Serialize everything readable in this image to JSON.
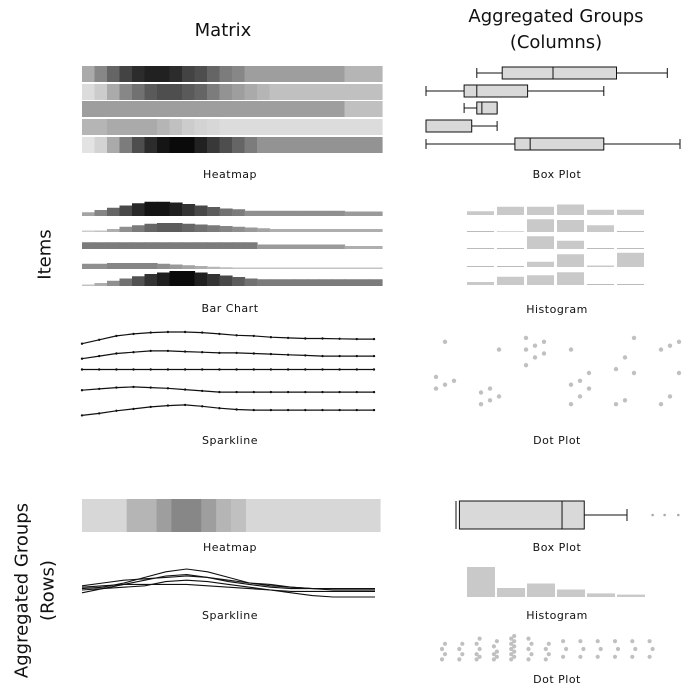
{
  "headers": {
    "matrix": "Matrix",
    "groups_line1": "Aggregated Groups",
    "groups_line2": "(Columns)"
  },
  "side": {
    "items": "Items",
    "rows_line1": "Aggregated Groups",
    "rows_line2": "(Rows)"
  },
  "captions": {
    "heatmap": "Heatmap",
    "box_plot": "Box Plot",
    "bar_chart": "Bar Chart",
    "histogram": "Histogram",
    "sparkline": "Sparkline",
    "dot_plot": "Dot Plot",
    "agg_heatmap": "Heatmap",
    "agg_box_plot": "Box Plot",
    "agg_sparkline": "Sparkline",
    "agg_histogram": "Histogram",
    "agg_dot_plot": "Dot Plot"
  },
  "chart_data": [
    {
      "type": "heatmap",
      "rows": [
        [
          0.3,
          0.45,
          0.6,
          0.75,
          0.85,
          0.9,
          0.9,
          0.85,
          0.75,
          0.7,
          0.6,
          0.5,
          0.45,
          0.35,
          0.35,
          0.35,
          0.35,
          0.35,
          0.35,
          0.35,
          0.35,
          0.25,
          0.25,
          0.25
        ],
        [
          0.08,
          0.15,
          0.3,
          0.45,
          0.55,
          0.65,
          0.7,
          0.7,
          0.65,
          0.6,
          0.5,
          0.4,
          0.35,
          0.3,
          0.25,
          0.2,
          0.2,
          0.2,
          0.2,
          0.2,
          0.2,
          0.2,
          0.2,
          0.2
        ],
        [
          0.35,
          0.35,
          0.35,
          0.35,
          0.35,
          0.35,
          0.35,
          0.35,
          0.35,
          0.35,
          0.35,
          0.35,
          0.35,
          0.35,
          0.35,
          0.35,
          0.35,
          0.35,
          0.35,
          0.35,
          0.35,
          0.2,
          0.2,
          0.2
        ],
        [
          0.25,
          0.25,
          0.3,
          0.3,
          0.3,
          0.3,
          0.25,
          0.2,
          0.15,
          0.12,
          0.1,
          0.08,
          0.08,
          0.08,
          0.08,
          0.08,
          0.08,
          0.08,
          0.08,
          0.08,
          0.08,
          0.08,
          0.08,
          0.08
        ],
        [
          0.05,
          0.12,
          0.3,
          0.5,
          0.7,
          0.85,
          0.95,
          1.0,
          1.0,
          0.9,
          0.8,
          0.7,
          0.6,
          0.5,
          0.4,
          0.4,
          0.4,
          0.4,
          0.4,
          0.4,
          0.4,
          0.4,
          0.4,
          0.4
        ]
      ]
    },
    {
      "type": "box",
      "boxes": [
        {
          "min": 0.2,
          "q1": 0.3,
          "median": 0.5,
          "q3": 0.75,
          "max": 0.95
        },
        {
          "min": 0.0,
          "q1": 0.15,
          "median": 0.2,
          "q3": 0.4,
          "max": 0.7
        },
        {
          "min": 0.15,
          "q1": 0.2,
          "median": 0.22,
          "q3": 0.28,
          "max": 0.28
        },
        {
          "min": 0.0,
          "q1": 0.0,
          "median": 0.0,
          "q3": 0.18,
          "max": 0.28
        },
        {
          "min": 0.0,
          "q1": 0.35,
          "median": 0.41,
          "q3": 0.7,
          "max": 1.0
        }
      ]
    },
    {
      "type": "bar",
      "rows": [
        [
          0.25,
          0.4,
          0.55,
          0.7,
          0.85,
          0.95,
          0.95,
          0.9,
          0.8,
          0.7,
          0.6,
          0.5,
          0.45,
          0.35,
          0.35,
          0.35,
          0.35,
          0.35,
          0.35,
          0.35,
          0.35,
          0.3,
          0.3,
          0.3
        ],
        [
          0.05,
          0.1,
          0.2,
          0.35,
          0.45,
          0.55,
          0.6,
          0.6,
          0.55,
          0.5,
          0.45,
          0.4,
          0.35,
          0.3,
          0.25,
          0.2,
          0.2,
          0.2,
          0.2,
          0.2,
          0.2,
          0.2,
          0.2,
          0.2
        ],
        [
          0.45,
          0.45,
          0.45,
          0.45,
          0.45,
          0.45,
          0.45,
          0.45,
          0.45,
          0.45,
          0.45,
          0.45,
          0.45,
          0.45,
          0.3,
          0.3,
          0.3,
          0.3,
          0.3,
          0.3,
          0.3,
          0.2,
          0.2,
          0.2
        ],
        [
          0.35,
          0.35,
          0.4,
          0.4,
          0.4,
          0.4,
          0.35,
          0.3,
          0.25,
          0.2,
          0.15,
          0.12,
          0.1,
          0.1,
          0.1,
          0.1,
          0.1,
          0.1,
          0.1,
          0.1,
          0.1,
          0.1,
          0.1,
          0.1
        ],
        [
          0.1,
          0.2,
          0.35,
          0.5,
          0.65,
          0.8,
          0.9,
          1.0,
          1.0,
          0.9,
          0.8,
          0.7,
          0.6,
          0.5,
          0.45,
          0.45,
          0.45,
          0.45,
          0.45,
          0.45,
          0.45,
          0.45,
          0.45,
          0.45
        ]
      ]
    },
    {
      "type": "histogram",
      "columns": [
        [
          0.25,
          0.0,
          0.0,
          0.0,
          0.2
        ],
        [
          0.55,
          0.05,
          0.0,
          0.0,
          0.55
        ],
        [
          0.55,
          0.85,
          0.85,
          0.35,
          0.65
        ],
        [
          0.7,
          0.8,
          0.55,
          0.85,
          0.85
        ],
        [
          0.35,
          0.45,
          0.0,
          0.1,
          0.0
        ],
        [
          0.35,
          0.0,
          0.0,
          0.95,
          0.0
        ]
      ]
    },
    {
      "type": "line",
      "series": [
        [
          0.1,
          0.4,
          0.7,
          0.85,
          0.95,
          1.0,
          1.0,
          0.95,
          0.85,
          0.75,
          0.7,
          0.6,
          0.55,
          0.5,
          0.5,
          0.48,
          0.45,
          0.45
        ],
        [
          0.1,
          0.3,
          0.5,
          0.6,
          0.7,
          0.7,
          0.65,
          0.6,
          0.55,
          0.55,
          0.5,
          0.45,
          0.4,
          0.35,
          0.3,
          0.3,
          0.3,
          0.3
        ],
        [
          0.5,
          0.5,
          0.5,
          0.5,
          0.5,
          0.5,
          0.5,
          0.5,
          0.5,
          0.5,
          0.5,
          0.5,
          0.5,
          0.5,
          0.5,
          0.5,
          0.5,
          0.5
        ],
        [
          0.6,
          0.7,
          0.8,
          0.85,
          0.8,
          0.75,
          0.65,
          0.55,
          0.45,
          0.45,
          0.45,
          0.45,
          0.45,
          0.45,
          0.45,
          0.45,
          0.45,
          0.45
        ],
        [
          0.05,
          0.2,
          0.4,
          0.55,
          0.7,
          0.8,
          0.85,
          0.75,
          0.6,
          0.5,
          0.45,
          0.45,
          0.45,
          0.45,
          0.45,
          0.45,
          0.45,
          0.45
        ]
      ]
    },
    {
      "type": "scatter",
      "columns": [
        {
          "values": [
            0.3,
            0.35,
            0.4,
            0.45,
            0.9
          ]
        },
        {
          "values": [
            0.1,
            0.15,
            0.2,
            0.25,
            0.3,
            0.8
          ]
        },
        {
          "values": [
            0.6,
            0.7,
            0.75,
            0.8,
            0.85,
            0.9,
            0.95
          ]
        },
        {
          "values": [
            0.1,
            0.2,
            0.3,
            0.35,
            0.4,
            0.5,
            0.8
          ]
        },
        {
          "values": [
            0.1,
            0.15,
            0.5,
            0.55,
            0.7,
            0.95
          ]
        },
        {
          "values": [
            0.1,
            0.2,
            0.5,
            0.8,
            0.85,
            0.9
          ]
        }
      ]
    },
    {
      "type": "heatmap",
      "rows": [
        [
          0.1,
          0.1,
          0.1,
          0.25,
          0.25,
          0.35,
          0.45,
          0.45,
          0.35,
          0.25,
          0.2,
          0.1,
          0.1,
          0.1,
          0.1,
          0.1,
          0.1,
          0.1,
          0.1,
          0.1
        ]
      ]
    },
    {
      "type": "box",
      "boxes": [
        {
          "min": 0.0,
          "q1": 0.02,
          "median": 0.62,
          "q3": 0.75,
          "max": 1.0,
          "outliers": [
            1.15,
            1.22,
            1.3
          ]
        }
      ]
    },
    {
      "type": "line",
      "series": [
        [
          0.3,
          0.35,
          0.5,
          0.7,
          0.9,
          1.0,
          0.9,
          0.7,
          0.5,
          0.4,
          0.35,
          0.3,
          0.25,
          0.25,
          0.25
        ],
        [
          0.15,
          0.3,
          0.45,
          0.6,
          0.75,
          0.8,
          0.7,
          0.6,
          0.5,
          0.45,
          0.35,
          0.3,
          0.3,
          0.3,
          0.3
        ],
        [
          0.4,
          0.5,
          0.6,
          0.65,
          0.7,
          0.75,
          0.7,
          0.55,
          0.45,
          0.35,
          0.3,
          0.3,
          0.3,
          0.3,
          0.3
        ],
        [
          0.35,
          0.4,
          0.45,
          0.45,
          0.45,
          0.45,
          0.4,
          0.35,
          0.3,
          0.25,
          0.2,
          0.2,
          0.2,
          0.2,
          0.2
        ],
        [
          0.25,
          0.3,
          0.35,
          0.4,
          0.55,
          0.6,
          0.55,
          0.45,
          0.35,
          0.25,
          0.15,
          0.05,
          0.0,
          0.0,
          0.0
        ]
      ]
    },
    {
      "type": "histogram",
      "values": [
        1.0,
        0.3,
        0.45,
        0.25,
        0.12,
        0.08
      ]
    },
    {
      "type": "scatter",
      "columns": [
        {
          "values": [
            0.1,
            0.3,
            0.5,
            0.7
          ]
        },
        {
          "values": [
            0.1,
            0.3,
            0.5,
            0.7
          ]
        },
        {
          "values": [
            0.1,
            0.2,
            0.3,
            0.5,
            0.7,
            0.9
          ]
        },
        {
          "values": [
            0.1,
            0.2,
            0.3,
            0.4,
            0.6,
            0.8
          ]
        },
        {
          "values": [
            0.1,
            0.2,
            0.3,
            0.4,
            0.5,
            0.6,
            0.7,
            0.8,
            0.9,
            1.0
          ]
        },
        {
          "values": [
            0.1,
            0.3,
            0.5,
            0.7,
            0.9
          ]
        },
        {
          "values": [
            0.1,
            0.3,
            0.5,
            0.7
          ]
        },
        {
          "values": [
            0.2,
            0.5,
            0.8
          ]
        },
        {
          "values": [
            0.2,
            0.5,
            0.8
          ]
        },
        {
          "values": [
            0.2,
            0.5,
            0.8
          ]
        },
        {
          "values": [
            0.2,
            0.5,
            0.8
          ]
        },
        {
          "values": [
            0.2,
            0.5,
            0.8
          ]
        },
        {
          "values": [
            0.2,
            0.5,
            0.8
          ]
        }
      ]
    }
  ]
}
